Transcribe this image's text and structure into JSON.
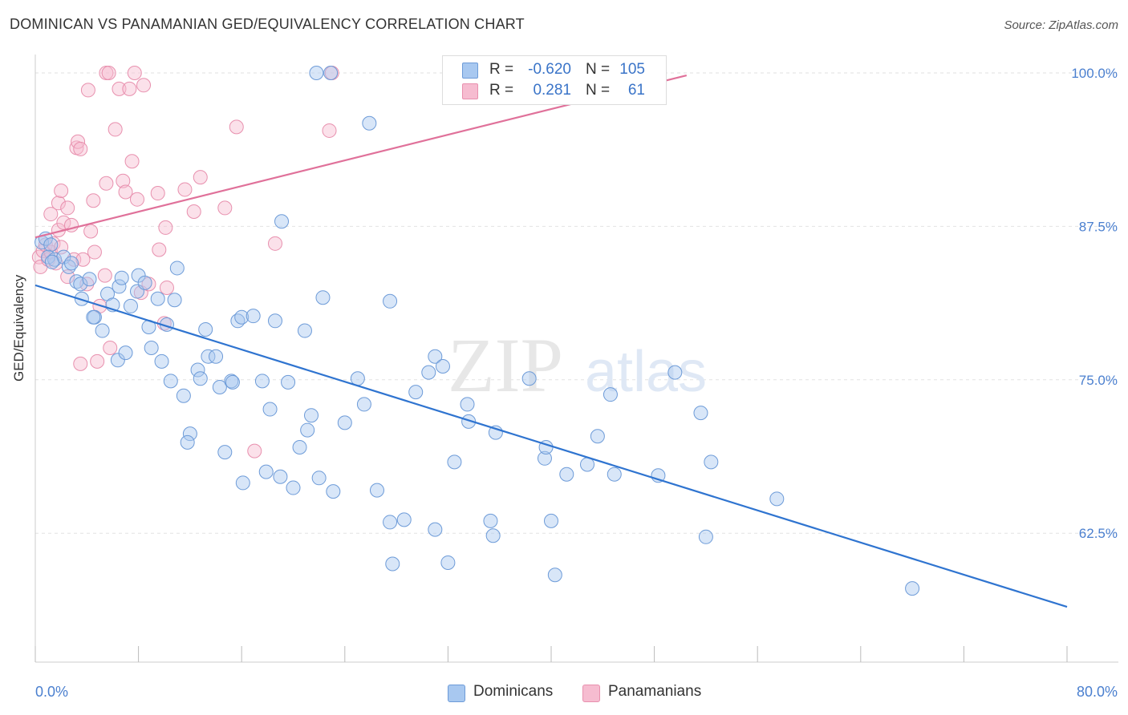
{
  "title": "DOMINICAN VS PANAMANIAN GED/EQUIVALENCY CORRELATION CHART",
  "source": "Source: ZipAtlas.com",
  "legend": {
    "rows": [
      {
        "r_label": "R =",
        "r_value": "-0.620",
        "n_label": "N =",
        "n_value": "105",
        "color": "#a8c8f0",
        "border": "#6d9bd8"
      },
      {
        "r_label": "R =",
        "r_value": "0.281",
        "n_label": "N =",
        "n_value": "61",
        "color": "#f6bcd0",
        "border": "#e890ae"
      }
    ]
  },
  "bottom_legend": [
    "Dominicans",
    "Panamanians"
  ],
  "watermark": "ZIPatlas",
  "colors": {
    "blue": "#4d86d6",
    "blue_line": "#2f74d0",
    "pink": "#e99ab6",
    "pink_line": "#e0719a",
    "tick_text": "#4a7fcf"
  },
  "chart_data": {
    "type": "scatter",
    "title": "DOMINICAN VS PANAMANIAN GED/EQUIVALENCY CORRELATION CHART",
    "xlabel": "",
    "ylabel": "GED/Equivalency",
    "xlim": [
      0,
      80
    ],
    "ylim": [
      52,
      101.5
    ],
    "x_tick_labels": [
      {
        "value": 0,
        "label": "0.0%"
      },
      {
        "value": 80,
        "label": "80.0%"
      }
    ],
    "y_tick_labels": [
      {
        "value": 100,
        "label": "100.0%"
      },
      {
        "value": 87.5,
        "label": "87.5%"
      },
      {
        "value": 75,
        "label": "75.0%"
      },
      {
        "value": 62.5,
        "label": "62.5%"
      }
    ],
    "grid": true,
    "legend_placement": "top-center",
    "series": [
      {
        "name": "Dominicans",
        "color": "#4d86d6",
        "trend": {
          "x": [
            0,
            80
          ],
          "y": [
            82.7,
            56.5
          ]
        },
        "points": [
          [
            0.5,
            86.2
          ],
          [
            0.8,
            86.5
          ],
          [
            1.2,
            86.0
          ],
          [
            1.0,
            85.0
          ],
          [
            1.5,
            84.8
          ],
          [
            2.2,
            85.0
          ],
          [
            2.6,
            84.2
          ],
          [
            3.2,
            83.0
          ],
          [
            3.5,
            82.8
          ],
          [
            4.2,
            83.2
          ],
          [
            3.6,
            81.6
          ],
          [
            4.6,
            80.1
          ],
          [
            5.2,
            79.0
          ],
          [
            5.6,
            82.0
          ],
          [
            6.0,
            81.1
          ],
          [
            6.5,
            82.6
          ],
          [
            6.7,
            83.3
          ],
          [
            7.4,
            81.0
          ],
          [
            7.9,
            82.2
          ],
          [
            8.0,
            83.5
          ],
          [
            8.5,
            82.9
          ],
          [
            8.8,
            79.3
          ],
          [
            9.5,
            81.6
          ],
          [
            10.2,
            79.5
          ],
          [
            10.8,
            81.5
          ],
          [
            11.0,
            84.1
          ],
          [
            6.4,
            76.6
          ],
          [
            7.0,
            77.2
          ],
          [
            9.8,
            76.5
          ],
          [
            10.5,
            74.9
          ],
          [
            11.5,
            73.7
          ],
          [
            12.0,
            70.6
          ],
          [
            11.8,
            69.9
          ],
          [
            12.6,
            75.8
          ],
          [
            12.8,
            75.1
          ],
          [
            13.4,
            76.9
          ],
          [
            13.2,
            79.1
          ],
          [
            14.0,
            76.9
          ],
          [
            14.3,
            74.4
          ],
          [
            14.7,
            69.1
          ],
          [
            15.2,
            74.9
          ],
          [
            15.3,
            74.8
          ],
          [
            15.7,
            79.8
          ],
          [
            16.0,
            80.1
          ],
          [
            16.1,
            66.6
          ],
          [
            16.9,
            80.2
          ],
          [
            17.6,
            74.9
          ],
          [
            17.9,
            67.5
          ],
          [
            18.2,
            72.6
          ],
          [
            18.6,
            79.8
          ],
          [
            19.0,
            67.1
          ],
          [
            19.6,
            74.8
          ],
          [
            20.0,
            66.2
          ],
          [
            20.5,
            69.5
          ],
          [
            20.9,
            79.0
          ],
          [
            21.1,
            70.9
          ],
          [
            21.4,
            72.1
          ],
          [
            22.0,
            67.0
          ],
          [
            22.3,
            81.7
          ],
          [
            23.1,
            65.9
          ],
          [
            24.0,
            71.5
          ],
          [
            25.0,
            75.1
          ],
          [
            25.5,
            73.0
          ],
          [
            26.5,
            66.0
          ],
          [
            27.5,
            81.4
          ],
          [
            27.5,
            63.4
          ],
          [
            27.7,
            60.0
          ],
          [
            28.6,
            63.6
          ],
          [
            29.5,
            74.0
          ],
          [
            30.5,
            75.6
          ],
          [
            31.0,
            76.9
          ],
          [
            31.0,
            62.8
          ],
          [
            31.6,
            76.1
          ],
          [
            32.0,
            60.1
          ],
          [
            32.5,
            68.3
          ],
          [
            33.5,
            73.0
          ],
          [
            33.6,
            71.6
          ],
          [
            35.3,
            63.5
          ],
          [
            35.5,
            62.3
          ],
          [
            35.7,
            70.7
          ],
          [
            38.3,
            75.1
          ],
          [
            39.5,
            68.6
          ],
          [
            39.6,
            69.5
          ],
          [
            40.0,
            63.5
          ],
          [
            40.3,
            59.1
          ],
          [
            41.2,
            67.3
          ],
          [
            42.8,
            68.1
          ],
          [
            43.6,
            70.4
          ],
          [
            44.6,
            73.8
          ],
          [
            44.9,
            67.3
          ],
          [
            48.3,
            67.2
          ],
          [
            49.6,
            75.6
          ],
          [
            51.6,
            72.3
          ],
          [
            52.0,
            62.2
          ],
          [
            52.4,
            68.3
          ],
          [
            57.5,
            65.3
          ],
          [
            68.0,
            58.0
          ],
          [
            21.8,
            100.0
          ],
          [
            22.9,
            100.0
          ],
          [
            25.9,
            95.9
          ],
          [
            19.1,
            87.9
          ],
          [
            4.5,
            80.1
          ],
          [
            2.8,
            84.5
          ],
          [
            1.3,
            84.6
          ],
          [
            9.0,
            77.6
          ]
        ]
      },
      {
        "name": "Panamanians",
        "color": "#e99ab6",
        "trend": {
          "x": [
            0,
            50.5
          ],
          "y": [
            86.6,
            99.8
          ]
        },
        "points": [
          [
            0.3,
            85.0
          ],
          [
            0.4,
            84.2
          ],
          [
            0.6,
            85.5
          ],
          [
            0.8,
            86.0
          ],
          [
            1.0,
            84.8
          ],
          [
            1.2,
            85.4
          ],
          [
            1.4,
            86.1
          ],
          [
            1.6,
            84.5
          ],
          [
            1.8,
            87.2
          ],
          [
            2.0,
            85.8
          ],
          [
            1.2,
            88.5
          ],
          [
            1.8,
            89.4
          ],
          [
            2.0,
            90.4
          ],
          [
            2.2,
            87.8
          ],
          [
            2.5,
            89.0
          ],
          [
            2.8,
            87.6
          ],
          [
            3.0,
            84.8
          ],
          [
            3.2,
            93.9
          ],
          [
            3.3,
            94.4
          ],
          [
            3.5,
            93.8
          ],
          [
            3.7,
            84.8
          ],
          [
            4.0,
            82.8
          ],
          [
            4.3,
            87.1
          ],
          [
            4.5,
            89.6
          ],
          [
            4.6,
            85.4
          ],
          [
            5.0,
            81.0
          ],
          [
            5.4,
            83.5
          ],
          [
            5.5,
            91.0
          ],
          [
            5.8,
            77.6
          ],
          [
            6.2,
            95.4
          ],
          [
            6.5,
            98.7
          ],
          [
            6.8,
            91.2
          ],
          [
            7.0,
            90.3
          ],
          [
            7.3,
            98.7
          ],
          [
            7.5,
            92.8
          ],
          [
            7.9,
            89.7
          ],
          [
            8.2,
            82.1
          ],
          [
            8.4,
            99.0
          ],
          [
            8.8,
            82.8
          ],
          [
            9.5,
            90.2
          ],
          [
            9.6,
            85.6
          ],
          [
            10.0,
            79.6
          ],
          [
            10.1,
            87.4
          ],
          [
            10.2,
            82.5
          ],
          [
            11.6,
            90.5
          ],
          [
            12.3,
            88.7
          ],
          [
            12.8,
            91.5
          ],
          [
            14.7,
            89.0
          ],
          [
            15.6,
            95.6
          ],
          [
            17.0,
            69.2
          ],
          [
            18.6,
            86.1
          ],
          [
            22.8,
            95.3
          ],
          [
            23.0,
            100.0
          ],
          [
            3.5,
            76.3
          ],
          [
            4.8,
            76.5
          ],
          [
            5.5,
            100.0
          ],
          [
            5.7,
            100.0
          ],
          [
            7.7,
            100.0
          ],
          [
            4.1,
            98.6
          ],
          [
            43.6,
            100.0
          ],
          [
            2.5,
            83.4
          ]
        ]
      }
    ]
  }
}
